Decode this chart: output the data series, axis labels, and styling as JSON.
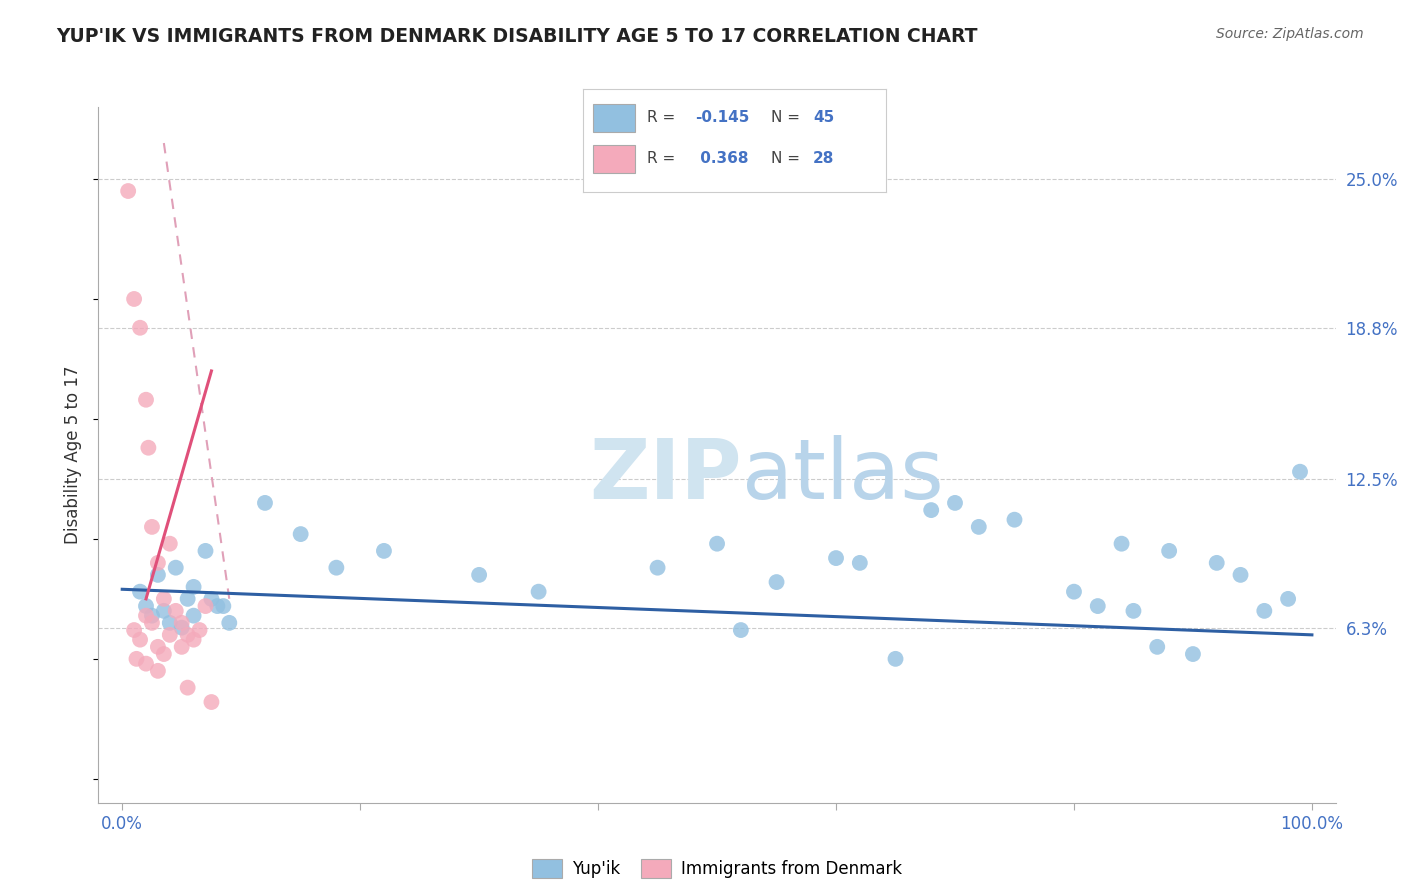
{
  "title": "YUP'IK VS IMMIGRANTS FROM DENMARK DISABILITY AGE 5 TO 17 CORRELATION CHART",
  "source": "Source: ZipAtlas.com",
  "ylabel": "Disability Age 5 to 17",
  "y_tick_values": [
    6.3,
    12.5,
    18.8,
    25.0
  ],
  "xlim": [
    -2.0,
    102.0
  ],
  "ylim": [
    -1.0,
    28.0
  ],
  "legend_r_blue": "-0.145",
  "legend_n_blue": "45",
  "legend_r_pink": "0.368",
  "legend_n_pink": "28",
  "blue_color": "#92C0E0",
  "pink_color": "#F4AABB",
  "trendline_blue_color": "#2E5FA3",
  "trendline_pink_color": "#E0507A",
  "trendline_pink_dashed_color": "#E0A0B8",
  "blue_scatter": [
    [
      1.5,
      7.8
    ],
    [
      2.0,
      7.2
    ],
    [
      2.5,
      6.8
    ],
    [
      3.0,
      8.5
    ],
    [
      3.5,
      7.0
    ],
    [
      4.0,
      6.5
    ],
    [
      4.5,
      8.8
    ],
    [
      5.0,
      6.3
    ],
    [
      5.5,
      7.5
    ],
    [
      6.0,
      8.0
    ],
    [
      7.0,
      9.5
    ],
    [
      8.0,
      7.2
    ],
    [
      12.0,
      11.5
    ],
    [
      15.0,
      10.2
    ],
    [
      18.0,
      8.8
    ],
    [
      22.0,
      9.5
    ],
    [
      30.0,
      8.5
    ],
    [
      35.0,
      7.8
    ],
    [
      45.0,
      8.8
    ],
    [
      50.0,
      9.8
    ],
    [
      52.0,
      6.2
    ],
    [
      55.0,
      8.2
    ],
    [
      60.0,
      9.2
    ],
    [
      62.0,
      9.0
    ],
    [
      65.0,
      5.0
    ],
    [
      68.0,
      11.2
    ],
    [
      70.0,
      11.5
    ],
    [
      72.0,
      10.5
    ],
    [
      75.0,
      10.8
    ],
    [
      80.0,
      7.8
    ],
    [
      82.0,
      7.2
    ],
    [
      84.0,
      9.8
    ],
    [
      85.0,
      7.0
    ],
    [
      87.0,
      5.5
    ],
    [
      88.0,
      9.5
    ],
    [
      90.0,
      5.2
    ],
    [
      92.0,
      9.0
    ],
    [
      94.0,
      8.5
    ],
    [
      96.0,
      7.0
    ],
    [
      98.0,
      7.5
    ],
    [
      99.0,
      12.8
    ],
    [
      6.0,
      6.8
    ],
    [
      7.5,
      7.5
    ],
    [
      8.5,
      7.2
    ],
    [
      9.0,
      6.5
    ]
  ],
  "pink_scatter": [
    [
      0.5,
      24.5
    ],
    [
      1.0,
      20.0
    ],
    [
      1.5,
      18.8
    ],
    [
      2.0,
      15.8
    ],
    [
      2.2,
      13.8
    ],
    [
      2.5,
      10.5
    ],
    [
      3.0,
      9.0
    ],
    [
      3.5,
      7.5
    ],
    [
      4.0,
      9.8
    ],
    [
      4.5,
      7.0
    ],
    [
      5.0,
      6.5
    ],
    [
      5.5,
      6.0
    ],
    [
      6.0,
      5.8
    ],
    [
      6.5,
      6.2
    ],
    [
      7.0,
      7.2
    ],
    [
      1.0,
      6.2
    ],
    [
      1.5,
      5.8
    ],
    [
      2.0,
      6.8
    ],
    [
      2.5,
      6.5
    ],
    [
      3.0,
      5.5
    ],
    [
      3.5,
      5.2
    ],
    [
      4.0,
      6.0
    ],
    [
      5.0,
      5.5
    ],
    [
      1.2,
      5.0
    ],
    [
      2.0,
      4.8
    ],
    [
      3.0,
      4.5
    ],
    [
      5.5,
      3.8
    ],
    [
      7.5,
      3.2
    ]
  ],
  "blue_trendline": [
    0.0,
    7.9,
    100.0,
    6.0
  ],
  "pink_trendline_solid": [
    2.0,
    7.5,
    7.5,
    17.0
  ],
  "pink_trendline_dashed": [
    3.5,
    26.5,
    9.0,
    7.5
  ]
}
